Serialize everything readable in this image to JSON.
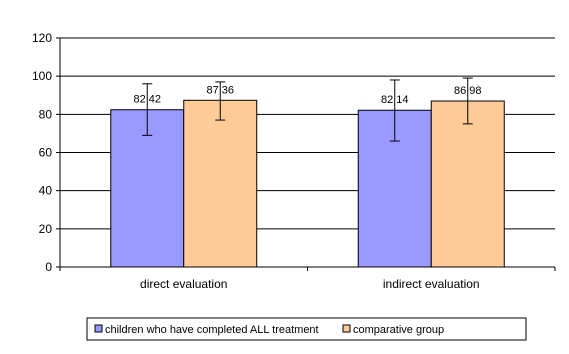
{
  "chart_data": {
    "type": "bar",
    "categories": [
      "direct evaluation",
      "indirect evaluation"
    ],
    "series": [
      {
        "name": "children who have completed ALL treatment",
        "values": [
          82.42,
          82.14
        ],
        "error_high": [
          96,
          98
        ],
        "error_low": [
          69,
          66
        ],
        "data_labels": [
          "82 42",
          "82 14"
        ],
        "color": "#9999ff"
      },
      {
        "name": "comparative group",
        "values": [
          87.36,
          86.98
        ],
        "error_high": [
          97,
          99
        ],
        "error_low": [
          77,
          75
        ],
        "data_labels": [
          "87 36",
          "86 98"
        ],
        "color": "#ffcc99"
      }
    ],
    "ylim": [
      0,
      120
    ],
    "yticks": [
      0,
      20,
      40,
      60,
      80,
      100,
      120
    ],
    "grid": true,
    "legend_position": "bottom",
    "title": "",
    "xlabel": "",
    "ylabel": ""
  }
}
